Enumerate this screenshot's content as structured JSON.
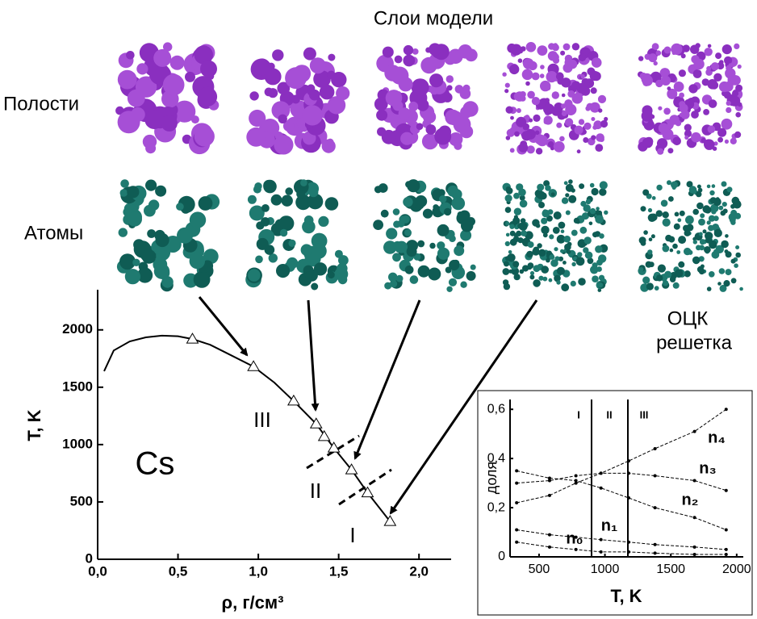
{
  "figure": {
    "title": "Слои модели",
    "rows": [
      "Полости",
      "Атомы"
    ],
    "lattice_label": [
      "ОЦК",
      "решетка"
    ]
  },
  "chart_data": [
    {
      "type": "line",
      "xlabel": "ρ, г/см³",
      "ylabel": "T, K",
      "xlim": [
        0,
        2.2
      ],
      "ylim": [
        0,
        2350
      ],
      "xticks": [
        {
          "value": 0,
          "label": "0,0"
        },
        {
          "value": 0.5,
          "label": "0,5"
        },
        {
          "value": 1,
          "label": "1,0"
        },
        {
          "value": 1.5,
          "label": "1,5"
        },
        {
          "value": 2,
          "label": "2,0"
        }
      ],
      "yticks": [
        0,
        500,
        1000,
        1500,
        2000
      ],
      "annotations": [
        "Cs",
        "III",
        "II",
        "I"
      ],
      "series": [
        {
          "color": "#000000",
          "x": [
            0.04,
            0.1,
            0.2,
            0.3,
            0.4,
            0.5,
            0.59,
            0.7,
            0.8,
            0.97,
            1.1,
            1.22,
            1.36,
            1.47,
            1.58,
            1.68,
            1.82
          ],
          "values": [
            1640,
            1820,
            1900,
            1935,
            1950,
            1945,
            1920,
            1870,
            1800,
            1680,
            1540,
            1380,
            1180,
            970,
            780,
            580,
            330
          ]
        },
        {
          "color": "#000000",
          "marker": "triangle",
          "x": [
            0.59,
            0.97,
            1.22,
            1.36,
            1.41,
            1.47,
            1.58,
            1.68,
            1.82
          ],
          "values": [
            1920,
            1680,
            1380,
            1180,
            1070,
            970,
            780,
            580,
            330
          ]
        }
      ]
    },
    {
      "type": "line",
      "xlabel": "T, K",
      "ylabel": "доля",
      "xlim": [
        280,
        2050
      ],
      "ylim": [
        0,
        0.64
      ],
      "xticks": [
        500,
        1000,
        1500,
        2000
      ],
      "yticks": [
        0,
        {
          "value": 0.2,
          "label": "0,2"
        },
        {
          "value": 0.4,
          "label": "0,4"
        },
        {
          "value": 0.6,
          "label": "0,6"
        }
      ],
      "annotations": [
        "I",
        "II",
        "III"
      ],
      "x": [
        330,
        580,
        780,
        970,
        1180,
        1380,
        1680,
        1920
      ],
      "series": [
        {
          "name": "n₄",
          "color": "#000000",
          "values": [
            0.22,
            0.25,
            0.3,
            0.34,
            0.39,
            0.44,
            0.51,
            0.6
          ]
        },
        {
          "name": "n₃",
          "color": "#000000",
          "values": [
            0.3,
            0.31,
            0.33,
            0.34,
            0.34,
            0.33,
            0.31,
            0.27
          ]
        },
        {
          "name": "n₂",
          "color": "#000000",
          "values": [
            0.35,
            0.32,
            0.31,
            0.28,
            0.24,
            0.2,
            0.16,
            0.11
          ]
        },
        {
          "name": "n₁",
          "color": "#000000",
          "values": [
            0.11,
            0.09,
            0.08,
            0.07,
            0.06,
            0.05,
            0.04,
            0.03
          ]
        },
        {
          "name": "n₀",
          "color": "#000000",
          "values": [
            0.06,
            0.04,
            0.03,
            0.02,
            0.02,
            0.015,
            0.01,
            0.01
          ]
        }
      ]
    }
  ]
}
